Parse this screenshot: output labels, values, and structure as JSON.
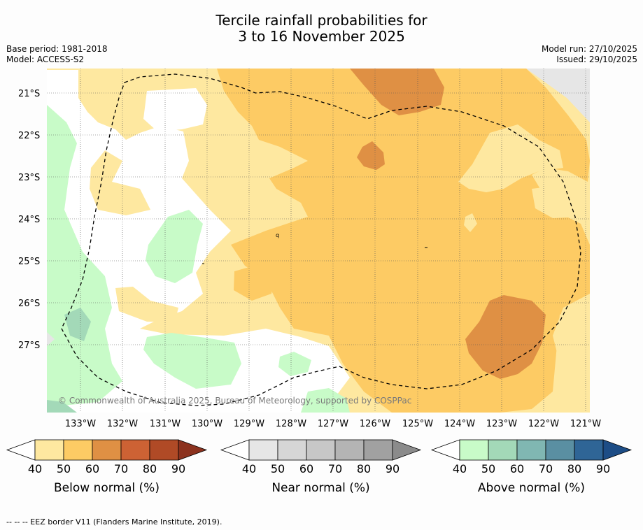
{
  "title": {
    "line1": "Tercile rainfall probabilities for",
    "line2": "3 to 16 November 2025"
  },
  "meta": {
    "base_period": "Base period: 1981-2018",
    "model": "Model: ACCESS-S2",
    "model_run": "Model run: 27/10/2025",
    "issued": "Issued: 29/10/2025"
  },
  "map": {
    "latitudes": [
      "21°S",
      "22°S",
      "23°S",
      "24°S",
      "25°S",
      "26°S",
      "27°S"
    ],
    "longitudes": [
      "133°W",
      "132°W",
      "131°W",
      "130°W",
      "129°W",
      "128°W",
      "127°W",
      "126°W",
      "125°W",
      "124°W",
      "123°W",
      "122°W",
      "121°W"
    ],
    "copyright": "© Commonwealth of Australia 2025, Bureau of Meteorology, supported by COSPPac",
    "stray_label": "q"
  },
  "colorbars": [
    {
      "label": "Below normal (%)",
      "ticks": [
        "40",
        "50",
        "60",
        "70",
        "80",
        "90"
      ],
      "colors": [
        "#fee8a0",
        "#fdcb64",
        "#df9044",
        "#cd6234",
        "#b04a26",
        "#8c321e"
      ]
    },
    {
      "label": "Near normal (%)",
      "ticks": [
        "40",
        "50",
        "60",
        "70",
        "80",
        "90"
      ],
      "colors": [
        "#e6e6e6",
        "#d6d6d6",
        "#c7c7c7",
        "#b4b4b4",
        "#a1a1a1",
        "#8b8b8b"
      ]
    },
    {
      "label": "Above normal (%)",
      "ticks": [
        "40",
        "50",
        "60",
        "70",
        "80",
        "90"
      ],
      "colors": [
        "#c8fbc8",
        "#a3d9b8",
        "#80b7b2",
        "#5a8fa2",
        "#2f6596",
        "#1d4d86"
      ]
    }
  ],
  "footnote": "--  --  -- EEZ border V11 (Flanders Marine Institute, 2019).",
  "colors": {
    "below40": "#fee8a0",
    "below50": "#fdcb64",
    "below60": "#df9044",
    "near40": "#e6e6e6",
    "above40": "#c8fbc8",
    "above50": "#a3d9b8"
  }
}
